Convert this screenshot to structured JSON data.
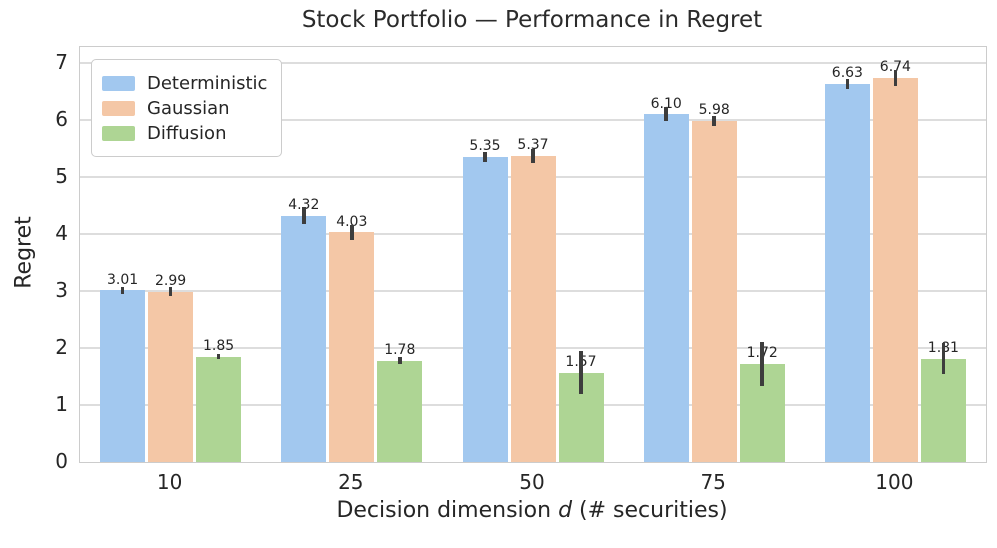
{
  "figure": {
    "title": "Stock Portfolio — Performance in Regret",
    "ylabel": "Regret",
    "xlabel_prefix": "Decision dimension ",
    "xlabel_italic": "d",
    "xlabel_suffix": " (# securities)"
  },
  "chart_data": {
    "type": "bar",
    "title": "Stock Portfolio — Performance in Regret",
    "xlabel": "Decision dimension d (# securities)",
    "ylabel": "Regret",
    "categories": [
      "10",
      "25",
      "50",
      "75",
      "100"
    ],
    "series": [
      {
        "name": "Deterministic",
        "color": "#a2c8ef",
        "values": [
          3.01,
          4.32,
          5.35,
          6.1,
          6.63
        ],
        "labels": [
          "3.01",
          "4.32",
          "5.35",
          "6.10",
          "6.63"
        ],
        "errors": [
          0.06,
          0.15,
          0.08,
          0.12,
          0.09
        ]
      },
      {
        "name": "Gaussian",
        "color": "#f4c7a6",
        "values": [
          2.99,
          4.03,
          5.37,
          5.98,
          6.74
        ],
        "labels": [
          "2.99",
          "4.03",
          "5.37",
          "5.98",
          "6.74"
        ],
        "errors": [
          0.08,
          0.13,
          0.12,
          0.09,
          0.14
        ]
      },
      {
        "name": "Diffusion",
        "color": "#aed594",
        "values": [
          1.85,
          1.78,
          1.57,
          1.72,
          1.81
        ],
        "labels": [
          "1.85",
          "1.78",
          "1.57",
          "1.72",
          "1.81"
        ],
        "errors": [
          0.05,
          0.06,
          0.38,
          0.39,
          0.27
        ]
      }
    ],
    "ylim": [
      0,
      7.28
    ],
    "yticks": [
      0,
      1,
      2,
      3,
      4,
      5,
      6,
      7
    ],
    "grid": true,
    "grid_color": "#dddddd",
    "errorbar_color": "#3d3d3d",
    "legend_position": "upper left"
  }
}
